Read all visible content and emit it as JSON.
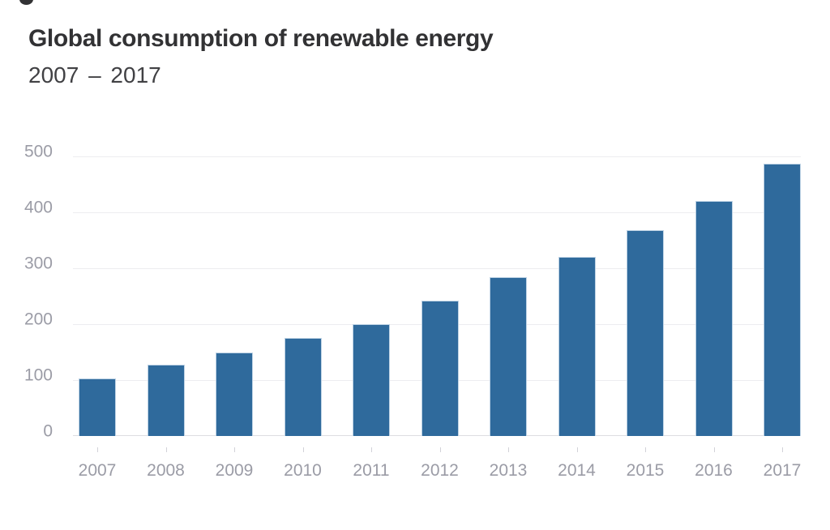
{
  "chart_data": {
    "type": "bar",
    "title": "Global consumption of renewable energy",
    "subtitle": "2007 – 2017",
    "categories": [
      "2007",
      "2008",
      "2009",
      "2010",
      "2011",
      "2012",
      "2013",
      "2014",
      "2015",
      "2016",
      "2017"
    ],
    "values": [
      103,
      127,
      150,
      175,
      200,
      242,
      284,
      321,
      368,
      420,
      487
    ],
    "xlabel": "",
    "ylabel": "",
    "ylim": [
      0,
      500
    ],
    "yticks": [
      0,
      100,
      200,
      300,
      400,
      500
    ],
    "grid": "horizontal",
    "legend_position": "none",
    "colors": {
      "bar_fill": "#2f6a9c",
      "bar_border": "#bdd2e4",
      "gridline": "#ededf0",
      "axis_line": "#dddde1",
      "tick": "#d2d2d8",
      "axis_label": "#9b9ca6",
      "title": "#323234",
      "subtitle": "#414144",
      "background": "#ffffff"
    }
  }
}
